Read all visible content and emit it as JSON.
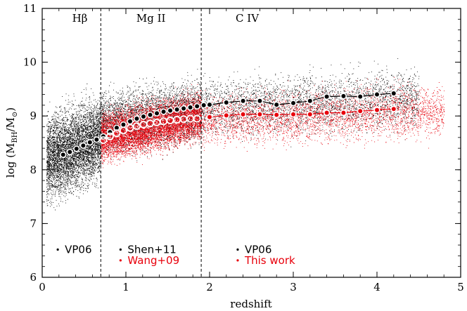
{
  "chart_data": {
    "type": "scatter",
    "xlabel": "redshift",
    "ylabel": "log (M",
    "ylabel_sub1": "BH",
    "ylabel_mid": "/M",
    "ylabel_sub2": "⊙",
    "ylabel_end": ")",
    "xlim": [
      0,
      5
    ],
    "ylim": [
      6,
      11
    ],
    "x_ticks": [
      0,
      1,
      2,
      3,
      4,
      5
    ],
    "x_tick_labels": [
      "0",
      "1",
      "2",
      "3",
      "4",
      "5"
    ],
    "y_ticks": [
      6,
      7,
      8,
      9,
      10,
      11
    ],
    "y_tick_labels": [
      "6",
      "7",
      "8",
      "9",
      "10",
      "11"
    ],
    "boundaries": [
      0.7,
      1.9
    ],
    "regions": [
      {
        "name": "Hβ",
        "x": 0.45,
        "y": 10.75
      },
      {
        "name": "Mg II",
        "x": 1.3,
        "y": 10.75
      },
      {
        "name": "C IV",
        "x": 2.45,
        "y": 10.75
      }
    ],
    "colors": {
      "black": "#000000",
      "red": "#e8000b",
      "text_red": "#e8000b"
    },
    "series": [
      {
        "name": "VP06 / Shen+11 median",
        "color": "#000000",
        "marker": "black-dot-white-ring",
        "x": [
          0.25,
          0.33,
          0.41,
          0.49,
          0.57,
          0.65,
          0.73,
          0.81,
          0.89,
          0.97,
          1.05,
          1.13,
          1.21,
          1.29,
          1.37,
          1.45,
          1.53,
          1.61,
          1.69,
          1.77,
          1.85,
          1.93,
          2.0,
          2.2,
          2.4,
          2.6,
          2.8,
          3.0,
          3.2,
          3.4,
          3.6,
          3.8,
          4.0,
          4.2
        ],
        "y": [
          8.28,
          8.33,
          8.39,
          8.45,
          8.51,
          8.56,
          8.62,
          8.7,
          8.78,
          8.84,
          8.9,
          8.95,
          8.99,
          9.02,
          9.05,
          9.08,
          9.1,
          9.12,
          9.14,
          9.16,
          9.18,
          9.2,
          9.21,
          9.25,
          9.28,
          9.28,
          9.21,
          9.24,
          9.28,
          9.36,
          9.37,
          9.36,
          9.4,
          9.42
        ],
        "connected_from_index": 22
      },
      {
        "name": "Wang+09 / This work median",
        "color": "#e8000b",
        "marker": "white-circle",
        "x": [
          0.73,
          0.81,
          0.89,
          0.97,
          1.05,
          1.13,
          1.21,
          1.29,
          1.37,
          1.45,
          1.53,
          1.61,
          1.69,
          1.77,
          1.85
        ],
        "y": [
          8.55,
          8.62,
          8.68,
          8.73,
          8.78,
          8.81,
          8.84,
          8.86,
          8.88,
          8.9,
          8.92,
          8.93,
          8.94,
          8.95,
          8.95
        ]
      },
      {
        "name": "This work median (C IV)",
        "color": "#e8000b",
        "marker": "red-dot-white-ring",
        "x": [
          2.0,
          2.2,
          2.4,
          2.6,
          2.8,
          3.0,
          3.2,
          3.4,
          3.6,
          3.8,
          4.0,
          4.2
        ],
        "y": [
          8.98,
          9.01,
          9.03,
          9.03,
          9.02,
          9.03,
          9.03,
          9.06,
          9.06,
          9.09,
          9.11,
          9.13
        ],
        "connected_from_index": 0
      }
    ],
    "legend": [
      {
        "text": "VP06",
        "color": "#000000",
        "x": 0.27,
        "y": 6.45
      },
      {
        "text": "Shen+11",
        "color": "#000000",
        "x": 1.02,
        "y": 6.45
      },
      {
        "text": "Wang+09",
        "color": "#e8000b",
        "x": 1.02,
        "y": 6.25
      },
      {
        "text": "VP06",
        "color": "#000000",
        "x": 2.42,
        "y": 6.45
      },
      {
        "text": "This work",
        "color": "#e8000b",
        "x": 2.42,
        "y": 6.25
      }
    ],
    "point_clouds": [
      {
        "color": "#000000",
        "x_range": [
          0.05,
          0.7
        ],
        "center": "8.15+0.65*x",
        "spread": 0.6,
        "count": 5500
      },
      {
        "color": "#000000",
        "x_range": [
          0.7,
          1.9
        ],
        "center": "9.1+0.2*(x-1.9)",
        "spread": 0.45,
        "count": 4000
      },
      {
        "color": "#000000",
        "x_range": [
          1.9,
          4.5
        ],
        "center": "9.15+0.07*(x-1.9)",
        "spread": 0.42,
        "count": 3200
      },
      {
        "color": "#e8000b",
        "x_range": [
          0.7,
          1.9
        ],
        "center": "8.6+0.33*(x-0.7)",
        "spread": 0.35,
        "count": 8000
      },
      {
        "color": "#e8000b",
        "x_range": [
          1.9,
          4.8
        ],
        "center": "8.9+0.07*(x-1.9)",
        "spread": 0.38,
        "count": 3500
      }
    ]
  }
}
